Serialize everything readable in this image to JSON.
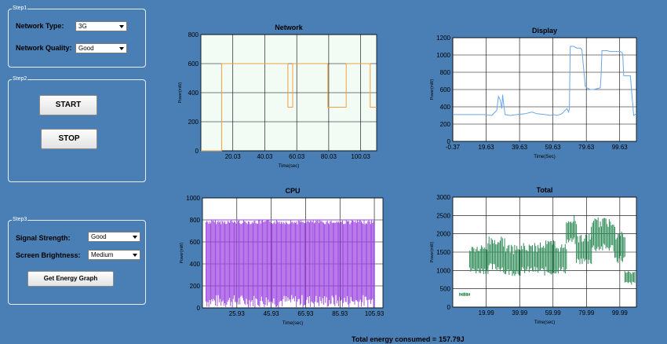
{
  "step1": {
    "title": "Step1",
    "network_type_label": "Network Type:",
    "network_type_value": "3G",
    "network_quality_label": "Network Quality:",
    "network_quality_value": "Good"
  },
  "step2": {
    "title": "Step2",
    "start_label": "START",
    "stop_label": "STOP"
  },
  "step3": {
    "title": "Step3",
    "signal_strength_label": "Signal Strength:",
    "signal_strength_value": "Good",
    "screen_brightness_label": "Screen Brightness:",
    "screen_brightness_value": "Medium",
    "get_graph_label": "Get Energy Graph"
  },
  "footer": {
    "total_label": "Total energy consumed =",
    "total_value": "157.79J"
  },
  "colors": {
    "background": "#4a7fb6",
    "network_series": "#f0a040",
    "display_series": "#6aa6e8",
    "cpu_series": "#9a40e0",
    "total_series": "#2e8b57"
  },
  "chart_data": [
    {
      "id": "network",
      "type": "line",
      "title": "Network",
      "xlabel": "Time(sec)",
      "ylabel": "Power(mW)",
      "ylim": [
        0,
        800
      ],
      "yticks": [
        "0",
        "200",
        "400",
        "600",
        "800"
      ],
      "xlim": [
        0.03,
        110.03
      ],
      "xticks": [
        20.03,
        40.03,
        60.03,
        80.03,
        100.03
      ],
      "xtick_labels": [
        "20.03",
        "40.03",
        "60.03",
        "80.03",
        "100.03"
      ],
      "background": "#f2fbf4",
      "series": [
        {
          "color": "#f0a040",
          "x": [
            0.03,
            13,
            13,
            54.5,
            54.5,
            57.5,
            57.5,
            79.5,
            79.5,
            91,
            91,
            106,
            106,
            110.03
          ],
          "y": [
            0,
            0,
            600,
            600,
            300,
            300,
            600,
            600,
            300,
            300,
            600,
            600,
            300,
            300
          ]
        }
      ]
    },
    {
      "id": "display",
      "type": "line",
      "title": "Display",
      "xlabel": "Time(Sec)",
      "ylabel": "Power(mW)",
      "ylim": [
        0,
        1200
      ],
      "yticks": [
        "0",
        "200",
        "400",
        "600",
        "800",
        "1000",
        "1200"
      ],
      "xlim": [
        -0.37,
        109.63
      ],
      "xticks": [
        -0.37,
        19.63,
        39.63,
        59.63,
        79.63,
        99.63
      ],
      "xtick_labels": [
        "-0.37",
        "19.63",
        "39.63",
        "59.63",
        "79.63",
        "99.63"
      ],
      "background": "#ffffff",
      "series": [
        {
          "color": "#6aa6e8",
          "x": [
            -0.37,
            18,
            23,
            25,
            26,
            27,
            28,
            29,
            29.5,
            30,
            31,
            34,
            38,
            43,
            47,
            50,
            55,
            58,
            60,
            62,
            65,
            68,
            69,
            69.5,
            70,
            71,
            72,
            74,
            76,
            77,
            79,
            80,
            82,
            84,
            86,
            88,
            88.5,
            89,
            92,
            94,
            100,
            101,
            101.5,
            102,
            104,
            106,
            108,
            109.63
          ],
          "y": [
            310,
            310,
            300,
            340,
            360,
            520,
            480,
            380,
            540,
            450,
            310,
            300,
            310,
            320,
            340,
            320,
            310,
            300,
            310,
            300,
            320,
            380,
            340,
            380,
            1100,
            1100,
            1100,
            1080,
            1080,
            1060,
            640,
            620,
            600,
            600,
            610,
            620,
            780,
            1050,
            1050,
            1040,
            1040,
            1030,
            1000,
            760,
            760,
            760,
            300,
            320
          ]
        }
      ]
    },
    {
      "id": "cpu",
      "type": "line",
      "title": "CPU",
      "xlabel": "Time(sec)",
      "ylabel": "Power(mW)",
      "ylim": [
        0,
        1000
      ],
      "yticks": [
        "0",
        "200",
        "400",
        "600",
        "800",
        "1000"
      ],
      "xlim": [
        5.93,
        110.93
      ],
      "xticks": [
        25.93,
        45.93,
        65.93,
        85.93,
        105.93
      ],
      "xtick_labels": [
        "25.93",
        "45.93",
        "65.93",
        "85.93",
        "105.93"
      ],
      "background": "#ffffff",
      "series": [
        {
          "color": "#9a40e0",
          "band": {
            "x_start": 8,
            "x_end": 106,
            "low": 0,
            "high": 800,
            "count": 180
          }
        }
      ]
    },
    {
      "id": "total",
      "type": "line",
      "title": "Total",
      "xlabel": "Time(sec)",
      "ylabel": "Power(mW)",
      "ylim": [
        0,
        3000
      ],
      "yticks": [
        "0",
        "500",
        "1000",
        "1500",
        "2000",
        "2500",
        "3000"
      ],
      "xlim": [
        -0.07,
        109.93
      ],
      "xticks": [
        19.99,
        39.99,
        59.99,
        79.99,
        99.99
      ],
      "xtick_labels": [
        "19.99",
        "39.99",
        "59.99",
        "79.99",
        "99.99"
      ],
      "background": "#ffffff",
      "series": [
        {
          "color": "#2e8b57",
          "band_segments": [
            {
              "x_start": 4,
              "x_end": 10,
              "low": 300,
              "high": 400
            },
            {
              "x_start": 10,
              "x_end": 21,
              "low": 900,
              "high": 1700
            },
            {
              "x_start": 21,
              "x_end": 31,
              "low": 950,
              "high": 1950
            },
            {
              "x_start": 31,
              "x_end": 41,
              "low": 850,
              "high": 1700
            },
            {
              "x_start": 41,
              "x_end": 51,
              "low": 900,
              "high": 1750
            },
            {
              "x_start": 51,
              "x_end": 61,
              "low": 850,
              "high": 1850
            },
            {
              "x_start": 61,
              "x_end": 68,
              "low": 900,
              "high": 1750
            },
            {
              "x_start": 68,
              "x_end": 74,
              "low": 1700,
              "high": 2500
            },
            {
              "x_start": 74,
              "x_end": 83,
              "low": 1150,
              "high": 2000
            },
            {
              "x_start": 83,
              "x_end": 97,
              "low": 1500,
              "high": 2450
            },
            {
              "x_start": 97,
              "x_end": 103,
              "low": 1200,
              "high": 2100
            },
            {
              "x_start": 103,
              "x_end": 109,
              "low": 600,
              "high": 1000
            }
          ]
        }
      ]
    }
  ]
}
